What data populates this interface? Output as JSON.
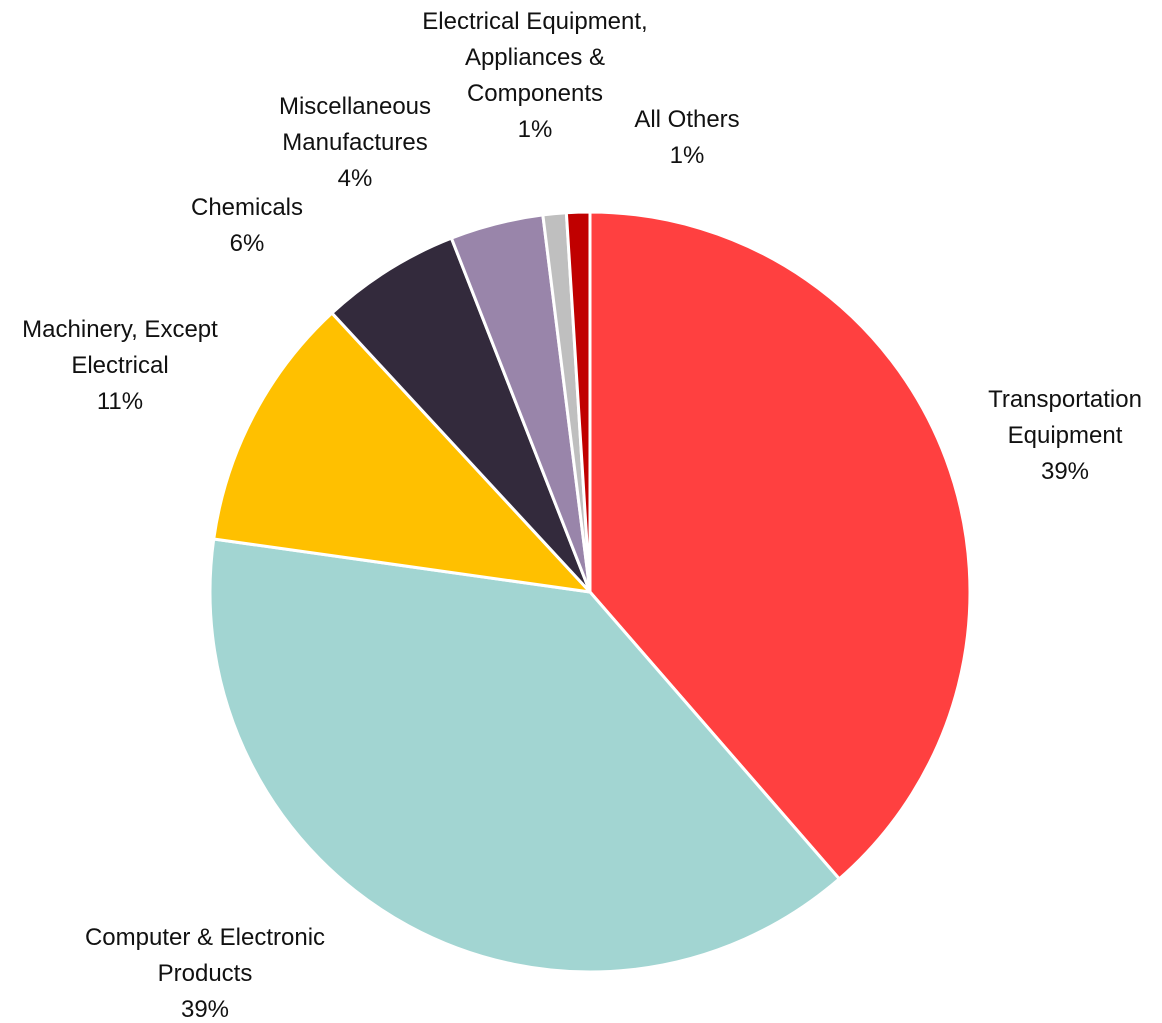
{
  "chart_data": {
    "type": "pie",
    "categories": [
      "Transportation Equipment",
      "Computer & Electronic Products",
      "Machinery, Except Electrical",
      "Chemicals",
      "Miscellaneous Manufactures",
      "Electrical Equipment, Appliances & Components",
      "All Others"
    ],
    "values": [
      39,
      39,
      11,
      6,
      4,
      1,
      1
    ],
    "value_labels": [
      "39%",
      "39%",
      "11%",
      "6%",
      "4%",
      "1%",
      "1%"
    ],
    "colors": [
      "#ff4040",
      "#a2d5d2",
      "#ffc000",
      "#332a3c",
      "#9985aa",
      "#bfbfbf",
      "#c00000"
    ]
  }
}
